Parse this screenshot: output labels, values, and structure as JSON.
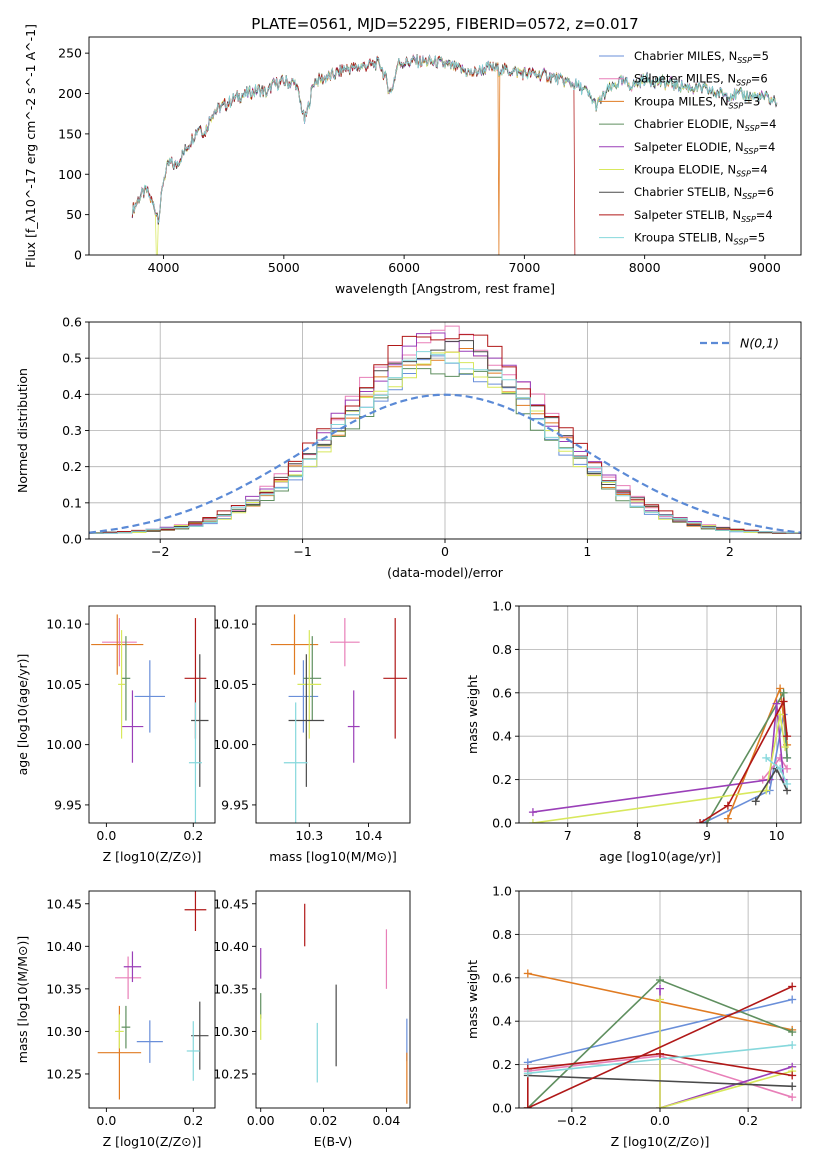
{
  "figure_title": "PLATE=0561, MJD=52295, FIBERID=0572, z=0.017",
  "colors": {
    "Chabrier MILES": "#6a8fd9",
    "Salpeter MILES": "#e87fb8",
    "Kroupa MILES": "#e07b22",
    "Chabrier ELODIE": "#5f8f5f",
    "Salpeter ELODIE": "#9a3fb8",
    "Kroupa ELODIE": "#d8e85c",
    "Chabrier STELIB": "#4a4a4a",
    "Salpeter STELIB": "#b01818",
    "Kroupa STELIB": "#86d8dc"
  },
  "chart_data": [
    {
      "id": "spectrum",
      "type": "line",
      "xlabel": "wavelength [Angstrom, rest frame]",
      "ylabel": "Flux [f_λ10^-17 erg cm^-2 s^-1 A^-1]",
      "xlim": [
        3380,
        9300
      ],
      "ylim": [
        0,
        270
      ],
      "xticks": [
        4000,
        5000,
        6000,
        7000,
        8000,
        9000
      ],
      "yticks": [
        0,
        50,
        100,
        150,
        200,
        250
      ],
      "legend_position": "top-right",
      "series": [
        {
          "name": "Chabrier MILES",
          "label_text": "Chabrier MILES, N",
          "sub": "SSP",
          "suffix": "=5"
        },
        {
          "name": "Salpeter MILES",
          "label_text": "Salpeter MILES, N",
          "sub": "SSP",
          "suffix": "=6"
        },
        {
          "name": "Kroupa MILES",
          "label_text": "Kroupa MILES, N",
          "sub": "SSP",
          "suffix": "=3"
        },
        {
          "name": "Chabrier ELODIE",
          "label_text": "Chabrier ELODIE, N",
          "sub": "SSP",
          "suffix": "=4"
        },
        {
          "name": "Salpeter ELODIE",
          "label_text": "Salpeter ELODIE, N",
          "sub": "SSP",
          "suffix": "=4"
        },
        {
          "name": "Kroupa ELODIE",
          "label_text": "Kroupa ELODIE, N",
          "sub": "SSP",
          "suffix": "=4"
        },
        {
          "name": "Chabrier STELIB",
          "label_text": "Chabrier STELIB, N",
          "sub": "SSP",
          "suffix": "=6"
        },
        {
          "name": "Salpeter STELIB",
          "label_text": "Salpeter STELIB, N",
          "sub": "SSP",
          "suffix": "=4"
        },
        {
          "name": "Kroupa STELIB",
          "label_text": "Kroupa STELIB, N",
          "sub": "SSP",
          "suffix": "=5"
        }
      ],
      "continuum": [
        [
          3740,
          55
        ],
        [
          3800,
          72
        ],
        [
          3860,
          80
        ],
        [
          3920,
          60
        ],
        [
          3960,
          45
        ],
        [
          4000,
          95
        ],
        [
          4050,
          115
        ],
        [
          4100,
          110
        ],
        [
          4200,
          135
        ],
        [
          4300,
          160
        ],
        [
          4340,
          150
        ],
        [
          4400,
          175
        ],
        [
          4500,
          185
        ],
        [
          4600,
          195
        ],
        [
          4700,
          200
        ],
        [
          4800,
          205
        ],
        [
          4861,
          200
        ],
        [
          4900,
          210
        ],
        [
          5000,
          215
        ],
        [
          5100,
          212
        ],
        [
          5175,
          165
        ],
        [
          5250,
          215
        ],
        [
          5400,
          222
        ],
        [
          5500,
          230
        ],
        [
          5600,
          232
        ],
        [
          5700,
          235
        ],
        [
          5800,
          237
        ],
        [
          5890,
          200
        ],
        [
          5950,
          238
        ],
        [
          6100,
          240
        ],
        [
          6300,
          238
        ],
        [
          6563,
          225
        ],
        [
          6700,
          232
        ],
        [
          6900,
          228
        ],
        [
          7000,
          225
        ],
        [
          7200,
          222
        ],
        [
          7400,
          212
        ],
        [
          7500,
          205
        ],
        [
          7600,
          185
        ],
        [
          7700,
          205
        ],
        [
          7800,
          215
        ],
        [
          7900,
          210
        ],
        [
          8000,
          218
        ],
        [
          8200,
          212
        ],
        [
          8500,
          205
        ],
        [
          8600,
          200
        ],
        [
          8800,
          198
        ],
        [
          9000,
          195
        ],
        [
          9100,
          190
        ]
      ],
      "dropouts": [
        {
          "series": "Kroupa ELODIE",
          "x": 3945
        },
        {
          "series": "Kroupa MILES",
          "x": 6790
        },
        {
          "series": "Salpeter STELIB",
          "x": 7420
        }
      ]
    },
    {
      "id": "residual-hist",
      "type": "line",
      "xlabel": "(data-model)/error",
      "ylabel": "Normed distribution",
      "xlim": [
        -2.5,
        2.5
      ],
      "ylim": [
        0,
        0.6
      ],
      "xticks": [
        -2,
        -1,
        0,
        1,
        2
      ],
      "yticks": [
        0.0,
        0.1,
        0.2,
        0.3,
        0.4,
        0.5,
        0.6
      ],
      "grid": true,
      "legend_position": "top-right",
      "reference_curve": {
        "label": "N(0,1)",
        "mean": 0,
        "sigma": 1,
        "color": "#5b8ad6",
        "dashed": true
      },
      "bin_width": 0.1,
      "histogram_sigma": 0.72,
      "histogram_peak": [
        0.47,
        0.55,
        0.5,
        0.46,
        0.54,
        0.48,
        0.52,
        0.56,
        0.49
      ]
    },
    {
      "id": "age-vs-Z",
      "type": "scatter",
      "xlabel": "Z [log10(Z/Z⊙)]",
      "ylabel": "age [log10(age/yr)]",
      "xlim": [
        -0.04,
        0.25
      ],
      "ylim": [
        9.935,
        10.115
      ],
      "xticks": [
        0.0,
        0.2
      ],
      "yticks": [
        9.95,
        10.0,
        10.05,
        10.1
      ],
      "points": [
        {
          "series": "Chabrier MILES",
          "x": 0.1,
          "y": 10.04,
          "xerr": 0.035,
          "yerr": 0.03
        },
        {
          "series": "Salpeter MILES",
          "x": 0.03,
          "y": 10.085,
          "xerr": 0.04,
          "yerr": 0.02
        },
        {
          "series": "Kroupa MILES",
          "x": 0.025,
          "y": 10.083,
          "xerr": 0.06,
          "yerr": 0.025
        },
        {
          "series": "Chabrier ELODIE",
          "x": 0.045,
          "y": 10.055,
          "xerr": 0.01,
          "yerr": 0.035
        },
        {
          "series": "Salpeter ELODIE",
          "x": 0.06,
          "y": 10.015,
          "xerr": 0.025,
          "yerr": 0.03
        },
        {
          "series": "Kroupa ELODIE",
          "x": 0.035,
          "y": 10.05,
          "xerr": 0.008,
          "yerr": 0.045
        },
        {
          "series": "Chabrier STELIB",
          "x": 0.215,
          "y": 10.02,
          "xerr": 0.02,
          "yerr": 0.055
        },
        {
          "series": "Salpeter STELIB",
          "x": 0.205,
          "y": 10.055,
          "xerr": 0.025,
          "yerr": 0.05
        },
        {
          "series": "Kroupa STELIB",
          "x": 0.205,
          "y": 9.985,
          "xerr": 0.015,
          "yerr": 0.05
        }
      ]
    },
    {
      "id": "age-vs-mass",
      "type": "scatter",
      "xlabel": "mass [log10(M/M⊙)]",
      "ylabel": "",
      "xlim": [
        10.21,
        10.47
      ],
      "ylim": [
        9.935,
        10.115
      ],
      "xticks": [
        10.3,
        10.4
      ],
      "yticks": [
        9.95,
        10.0,
        10.05,
        10.1
      ],
      "points": [
        {
          "series": "Chabrier MILES",
          "x": 10.29,
          "y": 10.04,
          "xerr": 0.025,
          "yerr": 0.03
        },
        {
          "series": "Salpeter MILES",
          "x": 10.36,
          "y": 10.085,
          "xerr": 0.025,
          "yerr": 0.02
        },
        {
          "series": "Kroupa MILES",
          "x": 10.275,
          "y": 10.083,
          "xerr": 0.04,
          "yerr": 0.025
        },
        {
          "series": "Chabrier ELODIE",
          "x": 10.305,
          "y": 10.055,
          "xerr": 0.015,
          "yerr": 0.035
        },
        {
          "series": "Salpeter ELODIE",
          "x": 10.375,
          "y": 10.015,
          "xerr": 0.01,
          "yerr": 0.03
        },
        {
          "series": "Kroupa ELODIE",
          "x": 10.3,
          "y": 10.05,
          "xerr": 0.02,
          "yerr": 0.045
        },
        {
          "series": "Chabrier STELIB",
          "x": 10.295,
          "y": 10.02,
          "xerr": 0.03,
          "yerr": 0.055
        },
        {
          "series": "Salpeter STELIB",
          "x": 10.445,
          "y": 10.055,
          "xerr": 0.02,
          "yerr": 0.05
        },
        {
          "series": "Kroupa STELIB",
          "x": 10.277,
          "y": 9.985,
          "xerr": 0.02,
          "yerr": 0.05
        }
      ]
    },
    {
      "id": "weight-vs-age",
      "type": "line",
      "xlabel": "age [log10(age/yr)]",
      "ylabel": "mass weight",
      "xlim": [
        6.3,
        10.35
      ],
      "ylim": [
        0,
        1.0
      ],
      "xticks": [
        7,
        8,
        9,
        10
      ],
      "yticks": [
        0.0,
        0.2,
        0.4,
        0.6,
        0.8,
        1.0
      ],
      "grid": true,
      "series": [
        {
          "name": "Chabrier MILES",
          "points": [
            [
              8.95,
              0.0
            ],
            [
              9.9,
              0.15
            ],
            [
              10.1,
              0.5
            ],
            [
              10.15,
              0.3
            ]
          ]
        },
        {
          "name": "Salpeter MILES",
          "points": [
            [
              9.8,
              0.2
            ],
            [
              10.05,
              0.3
            ],
            [
              10.15,
              0.25
            ]
          ]
        },
        {
          "name": "Kroupa MILES",
          "points": [
            [
              9.3,
              0.02
            ],
            [
              10.05,
              0.62
            ],
            [
              10.15,
              0.36
            ]
          ]
        },
        {
          "name": "Chabrier ELODIE",
          "points": [
            [
              9.0,
              0.0
            ],
            [
              10.1,
              0.6
            ],
            [
              10.15,
              0.3
            ]
          ]
        },
        {
          "name": "Salpeter ELODIE",
          "points": [
            [
              6.5,
              0.05
            ],
            [
              9.9,
              0.2
            ],
            [
              10.0,
              0.55
            ],
            [
              10.1,
              0.2
            ]
          ]
        },
        {
          "name": "Kroupa ELODIE",
          "points": [
            [
              6.5,
              0.0
            ],
            [
              9.85,
              0.15
            ],
            [
              10.05,
              0.5
            ],
            [
              10.12,
              0.35
            ]
          ]
        },
        {
          "name": "Chabrier STELIB",
          "points": [
            [
              9.7,
              0.1
            ],
            [
              10.0,
              0.25
            ],
            [
              10.15,
              0.15
            ]
          ]
        },
        {
          "name": "Salpeter STELIB",
          "points": [
            [
              8.9,
              0.0
            ],
            [
              9.3,
              0.08
            ],
            [
              10.1,
              0.56
            ],
            [
              10.15,
              0.4
            ]
          ]
        },
        {
          "name": "Kroupa STELIB",
          "points": [
            [
              9.85,
              0.3
            ],
            [
              10.05,
              0.25
            ],
            [
              10.15,
              0.18
            ]
          ]
        }
      ]
    },
    {
      "id": "mass-vs-Z",
      "type": "scatter",
      "xlabel": "Z [log10(Z/Z⊙)]",
      "ylabel": "mass [log10(M/M⊙)]",
      "xlim": [
        -0.04,
        0.25
      ],
      "ylim": [
        10.21,
        10.465
      ],
      "xticks": [
        0.0,
        0.2
      ],
      "yticks": [
        10.25,
        10.3,
        10.35,
        10.4,
        10.45
      ],
      "points": [
        {
          "series": "Chabrier MILES",
          "x": 0.1,
          "y": 10.288,
          "xerr": 0.03,
          "yerr": 0.025
        },
        {
          "series": "Salpeter MILES",
          "x": 0.05,
          "y": 10.363,
          "xerr": 0.03,
          "yerr": 0.025
        },
        {
          "series": "Kroupa MILES",
          "x": 0.03,
          "y": 10.275,
          "xerr": 0.05,
          "yerr": 0.055
        },
        {
          "series": "Chabrier ELODIE",
          "x": 0.045,
          "y": 10.305,
          "xerr": 0.01,
          "yerr": 0.025
        },
        {
          "series": "Salpeter ELODIE",
          "x": 0.06,
          "y": 10.376,
          "xerr": 0.02,
          "yerr": 0.018
        },
        {
          "series": "Kroupa ELODIE",
          "x": 0.03,
          "y": 10.3,
          "xerr": 0.01,
          "yerr": 0.02
        },
        {
          "series": "Chabrier STELIB",
          "x": 0.215,
          "y": 10.295,
          "xerr": 0.02,
          "yerr": 0.04
        },
        {
          "series": "Salpeter STELIB",
          "x": 0.205,
          "y": 10.443,
          "xerr": 0.025,
          "yerr": 0.025
        },
        {
          "series": "Kroupa STELIB",
          "x": 0.2,
          "y": 10.277,
          "xerr": 0.015,
          "yerr": 0.035
        }
      ]
    },
    {
      "id": "mass-vs-EBV",
      "type": "scatter",
      "xlabel": "E(B-V)",
      "ylabel": "",
      "xlim": [
        -0.0015,
        0.0475
      ],
      "ylim": [
        10.21,
        10.465
      ],
      "xticks": [
        0.0,
        0.02,
        0.04
      ],
      "yticks": [
        10.25,
        10.3,
        10.35,
        10.4,
        10.45
      ],
      "points": [
        {
          "series": "Chabrier MILES",
          "x": 0.0465,
          "y": 10.29,
          "xerr": 0,
          "yerr": 0.025
        },
        {
          "series": "Salpeter MILES",
          "x": 0.04,
          "y": 10.385,
          "xerr": 0,
          "yerr": 0.035
        },
        {
          "series": "Kroupa MILES",
          "x": 0.0465,
          "y": 10.245,
          "xerr": 0,
          "yerr": 0.03
        },
        {
          "series": "Chabrier ELODIE",
          "x": 0.0,
          "y": 10.33,
          "xerr": 0,
          "yerr": 0.015
        },
        {
          "series": "Salpeter ELODIE",
          "x": 0.0,
          "y": 10.38,
          "xerr": 0,
          "yerr": 0.018
        },
        {
          "series": "Kroupa ELODIE",
          "x": 0.0,
          "y": 10.305,
          "xerr": 0,
          "yerr": 0.015
        },
        {
          "series": "Chabrier STELIB",
          "x": 0.024,
          "y": 10.307,
          "xerr": 0,
          "yerr": 0.048
        },
        {
          "series": "Salpeter STELIB",
          "x": 0.014,
          "y": 10.425,
          "xerr": 0,
          "yerr": 0.025
        },
        {
          "series": "Kroupa STELIB",
          "x": 0.018,
          "y": 10.275,
          "xerr": 0,
          "yerr": 0.035
        }
      ]
    },
    {
      "id": "weight-vs-Z",
      "type": "line",
      "xlabel": "Z [log10(Z/Z⊙)]",
      "ylabel": "mass weight",
      "xlim": [
        -0.32,
        0.32
      ],
      "ylim": [
        0,
        1.0
      ],
      "xticks": [
        -0.2,
        0.0,
        0.2
      ],
      "yticks": [
        0.0,
        0.2,
        0.4,
        0.6,
        0.8,
        1.0
      ],
      "grid": true,
      "series": [
        {
          "name": "Chabrier MILES",
          "points": [
            [
              -0.3,
              0.21
            ],
            [
              0.3,
              0.5
            ]
          ]
        },
        {
          "name": "Salpeter MILES",
          "points": [
            [
              -0.3,
              0.17
            ],
            [
              0.0,
              0.24
            ],
            [
              0.3,
              0.05
            ]
          ]
        },
        {
          "name": "Kroupa MILES",
          "points": [
            [
              -0.3,
              0.62
            ],
            [
              0.3,
              0.36
            ]
          ]
        },
        {
          "name": "Chabrier ELODIE",
          "points": [
            [
              -0.3,
              0.0
            ],
            [
              0.0,
              0.59
            ],
            [
              0.3,
              0.35
            ]
          ]
        },
        {
          "name": "Salpeter ELODIE",
          "points": [
            [
              0.0,
              0.55
            ],
            [
              0.0,
              0.0
            ],
            [
              0.3,
              0.19
            ]
          ]
        },
        {
          "name": "Kroupa ELODIE",
          "points": [
            [
              0.0,
              0.5
            ],
            [
              0.0,
              0.0
            ],
            [
              0.3,
              0.17
            ]
          ]
        },
        {
          "name": "Chabrier STELIB",
          "points": [
            [
              -0.3,
              0.15
            ],
            [
              0.3,
              0.1
            ]
          ]
        },
        {
          "name": "Salpeter STELIB",
          "points": [
            [
              -0.3,
              0.0
            ],
            [
              -0.3,
              0.18
            ],
            [
              0.0,
              0.25
            ],
            [
              0.3,
              0.15
            ]
          ]
        },
        {
          "name": "Kroupa STELIB",
          "points": [
            [
              -0.3,
              0.16
            ],
            [
              0.3,
              0.29
            ]
          ]
        },
        {
          "name": "Salpeter STELIB",
          "points": [
            [
              -0.3,
              0.0
            ],
            [
              0.3,
              0.56
            ]
          ]
        }
      ]
    }
  ]
}
